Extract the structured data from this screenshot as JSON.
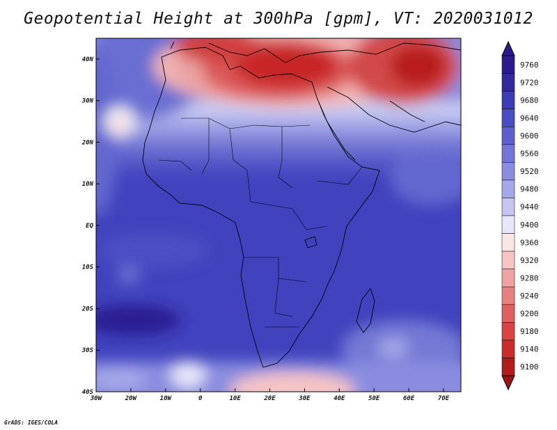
{
  "title": "Geopotential Height at 300hPa [gpm], VT: 2020031012",
  "footer": "GrADS: IGES/COLA",
  "map": {
    "lon_range": [
      -30,
      75
    ],
    "lat_range": [
      -40,
      45
    ],
    "x_ticks": [
      {
        "lon": -30,
        "label": "30W"
      },
      {
        "lon": -20,
        "label": "20W"
      },
      {
        "lon": -10,
        "label": "10W"
      },
      {
        "lon": 0,
        "label": "0"
      },
      {
        "lon": 10,
        "label": "10E"
      },
      {
        "lon": 20,
        "label": "20E"
      },
      {
        "lon": 30,
        "label": "30E"
      },
      {
        "lon": 40,
        "label": "40E"
      },
      {
        "lon": 50,
        "label": "50E"
      },
      {
        "lon": 60,
        "label": "60E"
      },
      {
        "lon": 70,
        "label": "70E"
      }
    ],
    "y_ticks": [
      {
        "lat": 40,
        "label": "40N"
      },
      {
        "lat": 30,
        "label": "30N"
      },
      {
        "lat": 20,
        "label": "20N"
      },
      {
        "lat": 10,
        "label": "10N"
      },
      {
        "lat": 0,
        "label": "EQ"
      },
      {
        "lat": -10,
        "label": "10S"
      },
      {
        "lat": -20,
        "label": "20S"
      },
      {
        "lat": -30,
        "label": "30S"
      },
      {
        "lat": -40,
        "label": "40S"
      }
    ]
  },
  "colorbar": {
    "levels": [
      {
        "label": "9760",
        "color": "#2a1a8c"
      },
      {
        "label": "9720",
        "color": "#3228a0"
      },
      {
        "label": "9680",
        "color": "#3a3cb8"
      },
      {
        "label": "9640",
        "color": "#4a4cc4"
      },
      {
        "label": "9600",
        "color": "#5d60cc"
      },
      {
        "label": "9560",
        "color": "#7376d6"
      },
      {
        "label": "9520",
        "color": "#8a8ddf"
      },
      {
        "label": "9480",
        "color": "#a5a8e8"
      },
      {
        "label": "9440",
        "color": "#c4c6f0"
      },
      {
        "label": "9400",
        "color": "#e6e6fa"
      },
      {
        "label": "9360",
        "color": "#fbe6e6"
      },
      {
        "label": "9320",
        "color": "#f7c4c4"
      },
      {
        "label": "9280",
        "color": "#f0a2a2"
      },
      {
        "label": "9240",
        "color": "#e88080"
      },
      {
        "label": "9200",
        "color": "#e06060"
      },
      {
        "label": "9180",
        "color": "#d84444"
      },
      {
        "label": "9140",
        "color": "#c82c2c"
      },
      {
        "label": "9100",
        "color": "#b01c1c"
      }
    ],
    "below_color": "#9a1414"
  }
}
